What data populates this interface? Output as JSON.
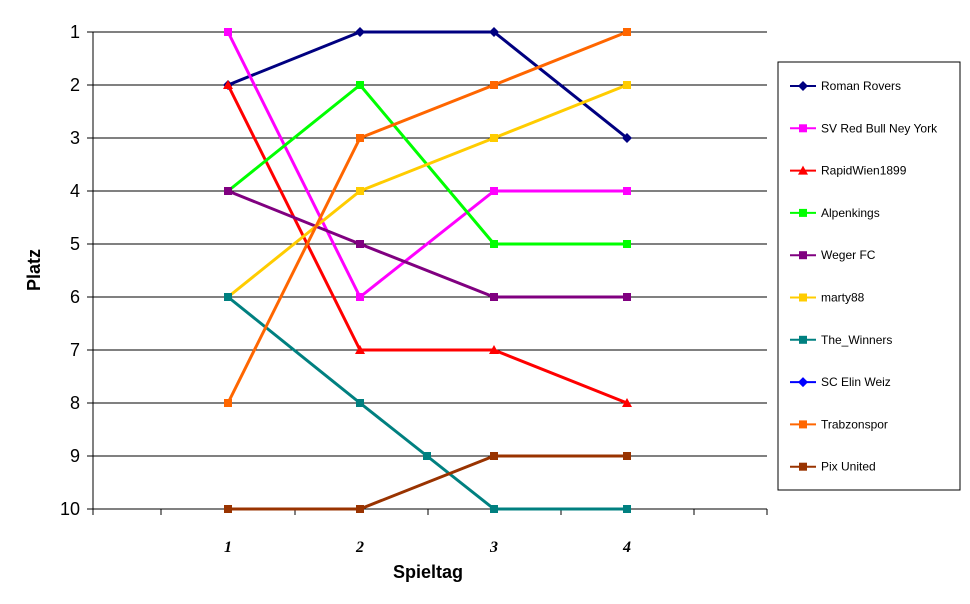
{
  "chart_data": {
    "type": "line",
    "xlabel": "Spieltag",
    "ylabel": "Platz",
    "x": [
      1,
      2,
      3,
      4
    ],
    "x_tick_labels": [
      "1",
      "2",
      "3",
      "4"
    ],
    "y_tick_labels": [
      "1",
      "2",
      "3",
      "4",
      "5",
      "6",
      "7",
      "8",
      "9",
      "10"
    ],
    "ylim": [
      1,
      10
    ],
    "y_inverted": true,
    "grid": "horizontal",
    "legend_position": "right",
    "series": [
      {
        "name": "Roman Rovers",
        "color": "#000080",
        "marker": "diamond",
        "values": [
          2,
          1,
          1,
          3
        ]
      },
      {
        "name": "SV Red Bull Ney York",
        "color": "#FF00FF",
        "marker": "square",
        "values": [
          1,
          6,
          4,
          4
        ]
      },
      {
        "name": "RapidWien1899",
        "color": "#FF0000",
        "marker": "triangle",
        "values": [
          2,
          7,
          7,
          8
        ]
      },
      {
        "name": "Alpenkings",
        "color": "#00FF00",
        "marker": "square",
        "values": [
          4,
          2,
          5,
          5
        ]
      },
      {
        "name": "Weger FC",
        "color": "#800080",
        "marker": "square",
        "values": [
          4,
          5,
          6,
          6
        ]
      },
      {
        "name": "marty88",
        "color": "#FFCC00",
        "marker": "square",
        "values": [
          6,
          4,
          3,
          2
        ]
      },
      {
        "name": "The_Winners",
        "color": "#008080",
        "marker": "square",
        "values": [
          6,
          8,
          10,
          10
        ],
        "extra_points": [
          [
            2.5,
            9
          ]
        ]
      },
      {
        "name": "SC Elin Weiz",
        "color": "#0000FF",
        "marker": "diamond",
        "values": [
          null,
          null,
          null,
          null
        ]
      },
      {
        "name": "Trabzonspor",
        "color": "#FF6600",
        "marker": "square",
        "values": [
          8,
          3,
          2,
          1
        ]
      },
      {
        "name": "Pix United",
        "color": "#993300",
        "marker": "square",
        "values": [
          10,
          10,
          9,
          9
        ]
      }
    ]
  }
}
